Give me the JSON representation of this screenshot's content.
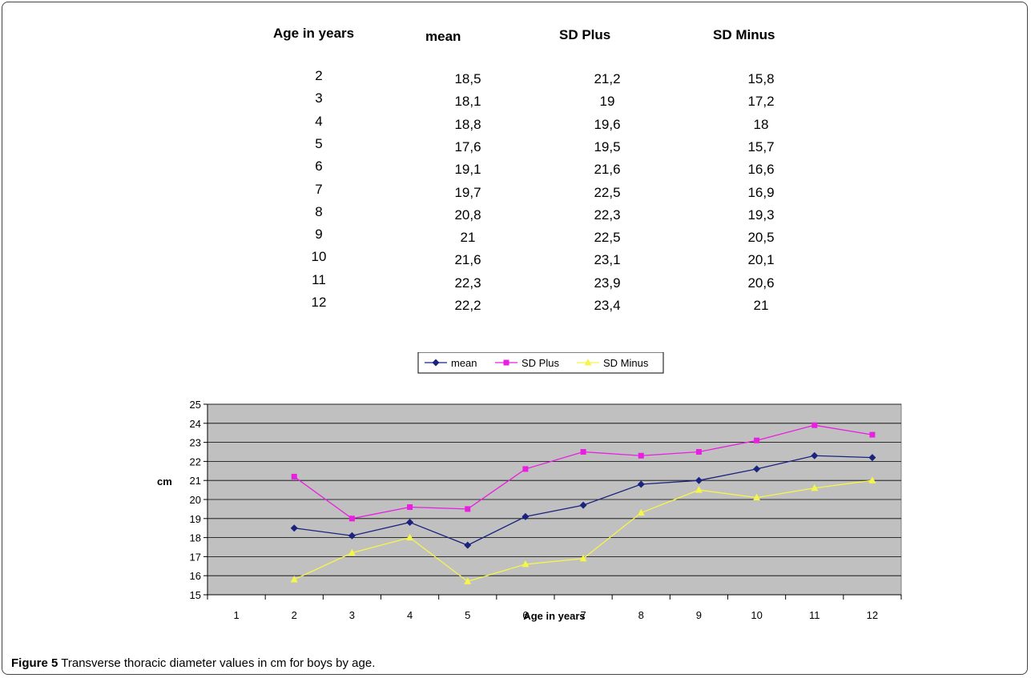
{
  "table": {
    "headers": [
      "Age in years",
      "mean",
      "SD Plus",
      "SD Minus"
    ],
    "rows": [
      [
        "2",
        "18,5",
        "21,2",
        "15,8"
      ],
      [
        "3",
        "18,1",
        "19",
        "17,2"
      ],
      [
        "4",
        "18,8",
        "19,6",
        "18"
      ],
      [
        "5",
        "17,6",
        "19,5",
        "15,7"
      ],
      [
        "6",
        "19,1",
        "21,6",
        "16,6"
      ],
      [
        "7",
        "19,7",
        "22,5",
        "16,9"
      ],
      [
        "8",
        "20,8",
        "22,3",
        "19,3"
      ],
      [
        "9",
        "21",
        "22,5",
        "20,5"
      ],
      [
        "10",
        "21,6",
        "23,1",
        "20,1"
      ],
      [
        "11",
        "22,3",
        "23,9",
        "20,6"
      ],
      [
        "12",
        "22,2",
        "23,4",
        "21"
      ]
    ]
  },
  "chart_data": {
    "type": "line",
    "categories": [
      "1",
      "2",
      "3",
      "4",
      "5",
      "6",
      "7",
      "8",
      "9",
      "10",
      "11",
      "12"
    ],
    "xlabel": "Age in years",
    "ylabel": "cm",
    "ylim": [
      15,
      25
    ],
    "yticks": [
      15,
      16,
      17,
      18,
      19,
      20,
      21,
      22,
      23,
      24,
      25
    ],
    "grid": true,
    "legend_position": "top",
    "series": [
      {
        "name": "mean",
        "color": "#1a237e",
        "marker": "diamond",
        "values": [
          null,
          18.5,
          18.1,
          18.8,
          17.6,
          19.1,
          19.7,
          20.8,
          21,
          21.6,
          22.3,
          22.2
        ]
      },
      {
        "name": "SD Plus",
        "color": "#e91ee0",
        "marker": "square",
        "values": [
          null,
          21.2,
          19,
          19.6,
          19.5,
          21.6,
          22.5,
          22.3,
          22.5,
          23.1,
          23.9,
          23.4
        ]
      },
      {
        "name": "SD Minus",
        "color": "#f5f54a",
        "marker": "triangle",
        "values": [
          null,
          15.8,
          17.2,
          18,
          15.7,
          16.6,
          16.9,
          19.3,
          20.5,
          20.1,
          20.6,
          21
        ]
      }
    ],
    "plot_background": "#c0c0c0"
  },
  "caption": {
    "label": "Figure 5",
    "text": " Transverse thoracic diameter values in cm for boys by age."
  }
}
